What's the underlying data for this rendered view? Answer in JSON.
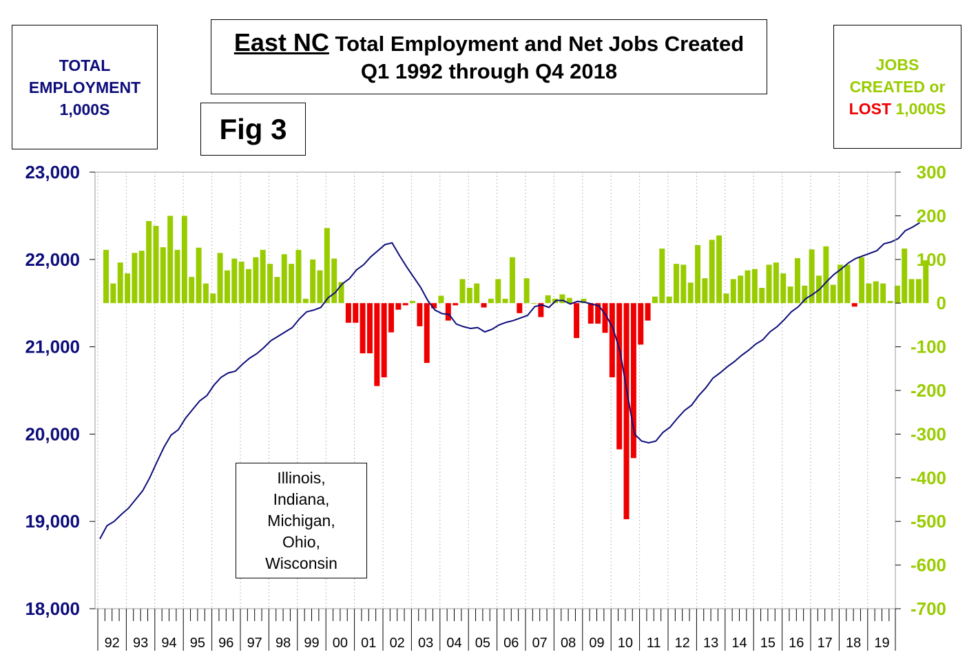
{
  "header": {
    "left_axis_title": [
      "TOTAL",
      "EMPLOYMENT",
      "1,000S"
    ],
    "right_axis_title": {
      "line1": "JOBS",
      "line2": "CREATED or",
      "line3_red": "LOST",
      "line3_green": " 1,000S"
    },
    "title_region": "East NC",
    "title_line1_rest": " Total Employment and Net Jobs Created",
    "title_line2": "Q1 1992 through Q4 2018",
    "figure_label": "Fig 3"
  },
  "inset_label": [
    "Illinois,",
    "Indiana,",
    "Michigan,",
    "Ohio,",
    "Wisconsin"
  ],
  "colors": {
    "employment_line": "#0c0c7a",
    "gain_bar": "#99cc00",
    "loss_bar": "#ee0000",
    "grid": "#bbbbbb"
  },
  "chart_data": {
    "type": "bar",
    "title": "East NC Total Employment and Net Jobs Created Q1 1992 through Q4 2018",
    "left_axis": {
      "ylim": [
        18000,
        23000
      ],
      "ticks": [
        "18,000",
        "19,000",
        "20,000",
        "21,000",
        "22,000",
        "23,000"
      ]
    },
    "right_axis": {
      "ylim": [
        -700,
        300
      ],
      "ticks": [
        "-700",
        "-600",
        "-500",
        "-400",
        "-300",
        "-200",
        "-100",
        "0",
        "100",
        "200",
        "300"
      ]
    },
    "x_labels": [
      "92",
      "93",
      "94",
      "95",
      "96",
      "97",
      "98",
      "99",
      "00",
      "01",
      "02",
      "03",
      "04",
      "05",
      "06",
      "07",
      "08",
      "09",
      "10",
      "11",
      "12",
      "13",
      "14",
      "15",
      "16",
      "17",
      "18",
      "19"
    ],
    "grid": "vertical dotted",
    "series": [
      {
        "axis": "right",
        "kind": "bar",
        "values": [
          122,
          45,
          93,
          68,
          115,
          120,
          188,
          177,
          128,
          200,
          122,
          200,
          60,
          127,
          45,
          22,
          115,
          75,
          102,
          95,
          78,
          105,
          122,
          90,
          60,
          112,
          90,
          122,
          10,
          100,
          75,
          172,
          102,
          48,
          -45,
          -45,
          -115,
          -115,
          -190,
          -170,
          -67,
          -15,
          -5,
          5,
          -53,
          -137,
          -12,
          17,
          -40,
          -5,
          55,
          35,
          45,
          -10,
          10,
          55,
          10,
          105,
          -23,
          57,
          0,
          -32,
          18,
          10,
          20,
          12,
          -80,
          10,
          -47,
          -47,
          -68,
          -170,
          -335,
          -495,
          -355,
          -95,
          -40,
          15,
          125,
          15,
          90,
          88,
          47,
          133,
          57,
          145,
          155,
          22,
          55,
          63,
          75,
          78,
          35,
          88,
          93,
          68,
          38,
          103,
          40,
          123,
          63,
          130,
          42,
          88,
          88,
          -8,
          105,
          45,
          50,
          45,
          5,
          40,
          125,
          55,
          55,
          98
        ]
      }
    ],
    "employment_line": {
      "axis": "left",
      "kind": "line",
      "values": [
        18800,
        18950,
        19000,
        19080,
        19150,
        19250,
        19350,
        19500,
        19680,
        19850,
        19990,
        20050,
        20180,
        20280,
        20380,
        20440,
        20560,
        20650,
        20700,
        20720,
        20800,
        20870,
        20920,
        20990,
        21070,
        21120,
        21170,
        21220,
        21320,
        21400,
        21420,
        21450,
        21560,
        21620,
        21720,
        21780,
        21880,
        21940,
        22030,
        22100,
        22170,
        22190,
        22050,
        21920,
        21800,
        21680,
        21530,
        21420,
        21380,
        21370,
        21260,
        21230,
        21210,
        21220,
        21170,
        21200,
        21250,
        21280,
        21300,
        21330,
        21360,
        21460,
        21480,
        21450,
        21530,
        21530,
        21490,
        21520,
        21510,
        21490,
        21470,
        21360,
        21210,
        20940,
        20460,
        20000,
        19920,
        19900,
        19920,
        20020,
        20080,
        20180,
        20270,
        20330,
        20440,
        20530,
        20640,
        20700,
        20770,
        20830,
        20900,
        20960,
        21030,
        21080,
        21170,
        21230,
        21310,
        21400,
        21460,
        21550,
        21600,
        21660,
        21750,
        21830,
        21890,
        21960,
        22010,
        22040,
        22070,
        22100,
        22180,
        22200,
        22240,
        22330,
        22370,
        22420
      ]
    }
  }
}
